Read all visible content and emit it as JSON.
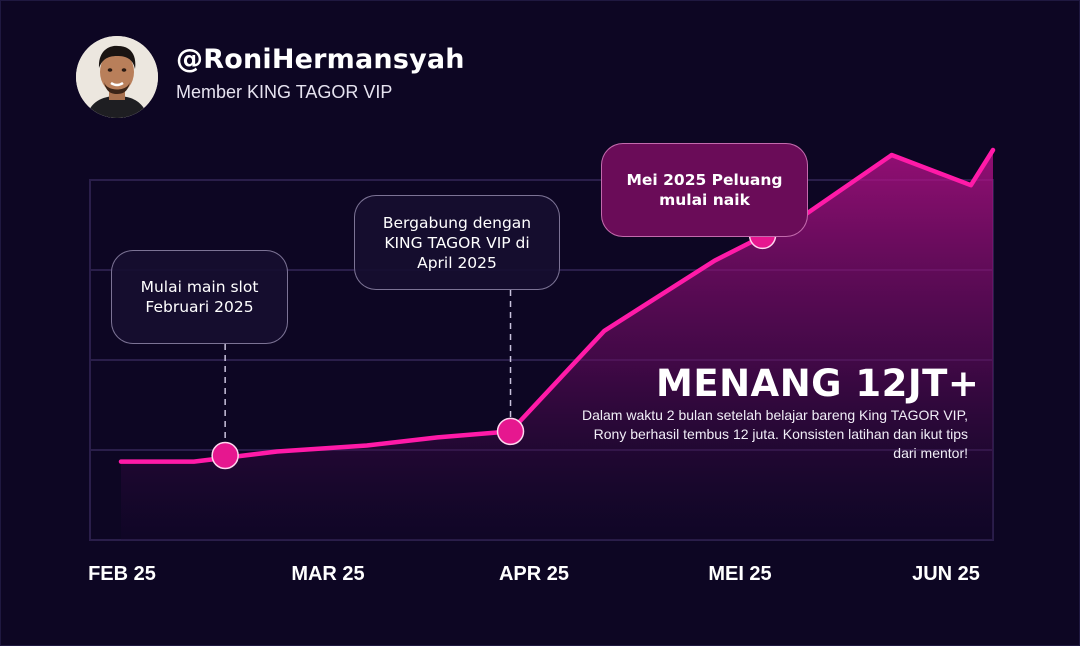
{
  "profile": {
    "handle": "@RoniHermansyah",
    "subtitle": "Member KING TAGOR VIP"
  },
  "callouts": [
    {
      "text": "Mulai main slot\nFebruari 2025"
    },
    {
      "text": "Bergabung dengan\nKING TAGOR VIP di\nApril 2025"
    },
    {
      "text": "Mei 2025 Peluang\nmulai naik"
    }
  ],
  "highlight": {
    "headline": "MENANG 12JT+",
    "body": "Dalam waktu 2 bulan setelah belajar bareng King TAGOR VIP, Rony berhasil tembus 12 juta. Konsisten latihan dan ikut tips dari mentor!"
  },
  "colors": {
    "background": "#0d0623",
    "line": "#ff1aa8",
    "marker": "#e6178f",
    "highlight_box": "#6a0c58"
  },
  "chart_data": {
    "type": "area",
    "categories": [
      "FEB 25",
      "MAR 25",
      "APR 25",
      "MEI 25",
      "JUN 25"
    ],
    "x": [
      0,
      0.35,
      0.75,
      1.18,
      1.52,
      1.87,
      2.32,
      2.85,
      3.28,
      3.7,
      4.08,
      4.48
    ],
    "values": [
      0.9,
      0.9,
      1.0,
      1.06,
      1.14,
      1.2,
      2.2,
      2.9,
      3.35,
      3.95,
      3.65,
      4.0
    ],
    "markers": [
      {
        "x": 0.5,
        "value": 0.96
      },
      {
        "x": 1.87,
        "value": 1.2
      },
      {
        "x": 3.08,
        "value": 3.15
      }
    ],
    "grid": true,
    "legend": "none"
  }
}
